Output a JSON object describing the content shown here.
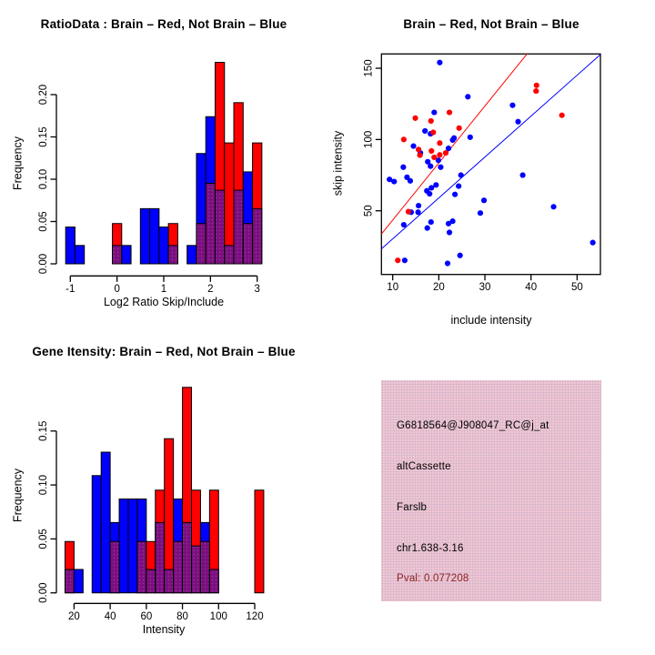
{
  "figure": {
    "background": "#ffffff",
    "red": "#ff0000",
    "blue": "#0000ff",
    "purple_overlap": "#7c0f7f",
    "purple_dot": "#a14fae",
    "dark_red_text": "#8b2323",
    "axis_color": "#000000",
    "info_panel_pink": "#f3c6d1"
  },
  "chart_data": [
    {
      "id": "ratio_histogram",
      "type": "bar",
      "title": "RatioData : Brain – Red, Not Brain – Blue",
      "xlabel": "Log2 Ratio Skip/Include",
      "ylabel": "Frequency",
      "bin_width": 0.2,
      "xticks": [
        -1,
        0,
        1,
        2,
        3
      ],
      "xtick_labels": [
        "-1",
        "0",
        "1",
        "2",
        "3"
      ],
      "yticks": [
        0,
        0.05,
        0.1,
        0.15,
        0.2
      ],
      "ytick_labels": [
        "0.00",
        "0.05",
        "0.10",
        "0.15",
        "0.20"
      ],
      "ylim": [
        0,
        0.24
      ],
      "series": [
        {
          "name": "Brain",
          "color": "#ff0000"
        },
        {
          "name": "Not Brain",
          "color": "#0000ff"
        },
        {
          "name": "overlap",
          "color": "#7c0f7f"
        }
      ],
      "bars": [
        {
          "center": -1.0,
          "red": 0,
          "blue": 0.0435
        },
        {
          "center": -0.8,
          "red": 0,
          "blue": 0.0217
        },
        {
          "center": 0.0,
          "red": 0.0476,
          "blue": 0.0217
        },
        {
          "center": 0.2,
          "red": 0,
          "blue": 0.0217
        },
        {
          "center": 0.6,
          "red": 0,
          "blue": 0.0652
        },
        {
          "center": 0.8,
          "red": 0,
          "blue": 0.0652
        },
        {
          "center": 1.0,
          "red": 0,
          "blue": 0.0435
        },
        {
          "center": 1.2,
          "red": 0.0476,
          "blue": 0.0217
        },
        {
          "center": 1.6,
          "red": 0,
          "blue": 0.0217
        },
        {
          "center": 1.8,
          "red": 0.0476,
          "blue": 0.1304
        },
        {
          "center": 2.0,
          "red": 0.0952,
          "blue": 0.1739
        },
        {
          "center": 2.2,
          "red": 0.2381,
          "blue": 0.087
        },
        {
          "center": 2.4,
          "red": 0.1429,
          "blue": 0.0217
        },
        {
          "center": 2.6,
          "red": 0.1905,
          "blue": 0.087
        },
        {
          "center": 2.8,
          "red": 0.0476,
          "blue": 0.1087
        },
        {
          "center": 3.0,
          "red": 0.1429,
          "blue": 0.0652
        }
      ]
    },
    {
      "id": "intensity_scatter",
      "type": "scatter",
      "title": "Brain – Red, Not Brain – Blue",
      "xlabel": "include intensity",
      "ylabel": "skip intensity",
      "xticks": [
        10,
        20,
        30,
        40,
        50
      ],
      "xtick_labels": [
        "10",
        "20",
        "30",
        "40",
        "50"
      ],
      "yticks": [
        50,
        100,
        150
      ],
      "ytick_labels": [
        "50",
        "100",
        "150"
      ],
      "xlim": [
        7.5,
        55.2
      ],
      "ylim": [
        5,
        160
      ],
      "red_line": {
        "slope": 4.0,
        "intercept": 3.5
      },
      "blue_line": {
        "slope": 2.87,
        "intercept": 1.6
      },
      "red_points": [
        [
          41.2,
          138
        ],
        [
          41.1,
          134
        ],
        [
          46.7,
          117
        ],
        [
          22.3,
          119
        ],
        [
          14.9,
          115
        ],
        [
          18.3,
          113
        ],
        [
          24.4,
          108
        ],
        [
          18.8,
          105
        ],
        [
          12.4,
          100
        ],
        [
          20.2,
          97.5
        ],
        [
          15.6,
          93
        ],
        [
          18.4,
          92
        ],
        [
          21.5,
          90.6
        ],
        [
          20.2,
          89.2
        ],
        [
          15.9,
          89
        ],
        [
          19.0,
          87.5
        ],
        [
          13.4,
          49.4
        ],
        [
          11.1,
          15.2
        ]
      ],
      "blue_points": [
        [
          20.2,
          154
        ],
        [
          26.3,
          130
        ],
        [
          36,
          124
        ],
        [
          19,
          119
        ],
        [
          37.2,
          112.5
        ],
        [
          17,
          106
        ],
        [
          18.2,
          104
        ],
        [
          23.3,
          101
        ],
        [
          26.8,
          101.6
        ],
        [
          23,
          99.6
        ],
        [
          14.5,
          95.4
        ],
        [
          22.1,
          93.8
        ],
        [
          16,
          90.6
        ],
        [
          19.9,
          85.4
        ],
        [
          17.6,
          84.4
        ],
        [
          12.3,
          80.6
        ],
        [
          18.2,
          81.3
        ],
        [
          20.4,
          80.6
        ],
        [
          24.8,
          75
        ],
        [
          38.2,
          75
        ],
        [
          9.3,
          72
        ],
        [
          10.3,
          70.5
        ],
        [
          13.1,
          73.5
        ],
        [
          13.8,
          71
        ],
        [
          19.4,
          68.1
        ],
        [
          18.4,
          66.1
        ],
        [
          17.4,
          64
        ],
        [
          18,
          61.9
        ],
        [
          24.3,
          67.3
        ],
        [
          23.5,
          61.5
        ],
        [
          29.8,
          57.3
        ],
        [
          44.9,
          52.8
        ],
        [
          15.6,
          53.6
        ],
        [
          14,
          49
        ],
        [
          15.5,
          49
        ],
        [
          29,
          48.4
        ],
        [
          12.4,
          40.2
        ],
        [
          18.3,
          42.1
        ],
        [
          17.5,
          37.9
        ],
        [
          22.1,
          41
        ],
        [
          23,
          42.7
        ],
        [
          22.3,
          34.8
        ],
        [
          53.4,
          27.7
        ],
        [
          24.6,
          18.7
        ],
        [
          12.6,
          15.2
        ],
        [
          21.9,
          13.1
        ]
      ]
    },
    {
      "id": "gene_intensity_histogram",
      "type": "bar",
      "title": "Gene Itensity: Brain – Red, Not Brain – Blue",
      "xlabel": "Intensity",
      "ylabel": "Frequency",
      "bin_width": 5,
      "xticks": [
        20,
        40,
        60,
        80,
        100,
        120
      ],
      "xtick_labels": [
        "20",
        "40",
        "60",
        "80",
        "100",
        "120"
      ],
      "yticks": [
        0,
        0.05,
        0.1,
        0.15
      ],
      "ytick_labels": [
        "0.00",
        "0.05",
        "0.10",
        "0.15"
      ],
      "ylim": [
        0,
        0.19
      ],
      "series": [
        {
          "name": "Brain",
          "color": "#ff0000"
        },
        {
          "name": "Not Brain",
          "color": "#0000ff"
        },
        {
          "name": "overlap",
          "color": "#7c0f7f"
        }
      ],
      "bars": [
        {
          "start": 15,
          "red": 0.0476,
          "blue": 0.0217
        },
        {
          "start": 20,
          "red": 0,
          "blue": 0.0217
        },
        {
          "start": 30,
          "red": 0,
          "blue": 0.1087
        },
        {
          "start": 35,
          "red": 0,
          "blue": 0.1304
        },
        {
          "start": 40,
          "red": 0.0476,
          "blue": 0.0652
        },
        {
          "start": 45,
          "red": 0,
          "blue": 0.087
        },
        {
          "start": 50,
          "red": 0,
          "blue": 0.087
        },
        {
          "start": 55,
          "red": 0.0476,
          "blue": 0.087
        },
        {
          "start": 60,
          "red": 0.0476,
          "blue": 0.0217
        },
        {
          "start": 65,
          "red": 0.0952,
          "blue": 0.0652
        },
        {
          "start": 70,
          "red": 0.1429,
          "blue": 0.0217
        },
        {
          "start": 75,
          "red": 0.0476,
          "blue": 0.087
        },
        {
          "start": 80,
          "red": 0.1905,
          "blue": 0.0652
        },
        {
          "start": 85,
          "red": 0.0952,
          "blue": 0.0435
        },
        {
          "start": 90,
          "red": 0.0476,
          "blue": 0.0652
        },
        {
          "start": 95,
          "red": 0.0952,
          "blue": 0.0217
        },
        {
          "start": 120,
          "red": 0.0952,
          "blue": 0
        }
      ]
    }
  ],
  "info_panel": {
    "lines": [
      {
        "text": "G6818564@J908047_RC@j_at",
        "color": "#000000"
      },
      {
        "text": "altCassette",
        "color": "#000000"
      },
      {
        "text": "Farslb",
        "color": "#000000"
      },
      {
        "text": "chr1.638-3.16",
        "color": "#000000"
      },
      {
        "text": "Pval: 0.077208",
        "color": "#8b2323"
      }
    ]
  }
}
